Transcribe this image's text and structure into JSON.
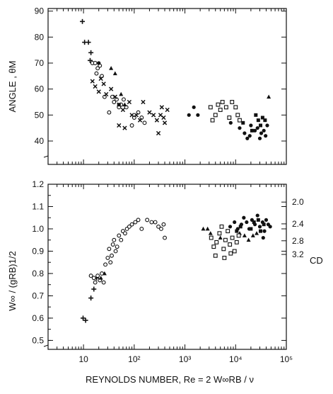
{
  "chart_data": [
    {
      "type": "scatter",
      "panel": "top",
      "title": "",
      "xlabel": "",
      "ylabel": "ANGLE ,  θM",
      "x_scale": "log",
      "xlim": [
        2,
        100000
      ],
      "ylim": [
        31,
        91
      ],
      "y_ticks": [
        40,
        50,
        60,
        70,
        80,
        90
      ],
      "y_tick_labels": [
        "40",
        "50",
        "60",
        "70",
        "80",
        "90"
      ],
      "grid": false,
      "series": [
        {
          "marker": "plus",
          "points": [
            [
              9.5,
              86
            ],
            [
              10.5,
              78
            ],
            [
              12.5,
              78
            ],
            [
              14,
              74
            ],
            [
              13.5,
              71
            ]
          ]
        },
        {
          "marker": "open-circle",
          "points": [
            [
              15,
              70
            ],
            [
              17,
              70
            ],
            [
              19,
              68
            ],
            [
              21,
              69
            ],
            [
              18,
              66
            ],
            [
              23,
              65
            ],
            [
              26,
              57
            ],
            [
              32,
              51
            ],
            [
              37,
              57
            ],
            [
              40,
              55
            ],
            [
              45,
              56
            ],
            [
              50,
              53
            ],
            [
              55,
              54
            ],
            [
              62,
              56
            ],
            [
              70,
              53
            ],
            [
              90,
              46
            ],
            [
              100,
              49
            ],
            [
              120,
              51
            ],
            [
              140,
              49
            ],
            [
              160,
              47
            ]
          ]
        },
        {
          "marker": "cross",
          "points": [
            [
              15,
              63
            ],
            [
              17,
              61
            ],
            [
              20,
              59
            ],
            [
              22,
              64
            ],
            [
              25,
              62
            ],
            [
              28,
              58
            ],
            [
              35,
              60
            ],
            [
              42,
              57
            ],
            [
              50,
              54
            ],
            [
              60,
              52
            ],
            [
              50,
              46
            ],
            [
              65,
              45
            ],
            [
              80,
              55
            ],
            [
              90,
              50
            ],
            [
              110,
              50
            ],
            [
              130,
              48
            ],
            [
              150,
              55
            ],
            [
              200,
              51
            ],
            [
              240,
              50
            ],
            [
              280,
              48
            ],
            [
              300,
              43
            ],
            [
              330,
              50
            ],
            [
              350,
              53
            ],
            [
              380,
              49
            ],
            [
              400,
              47
            ],
            [
              450,
              52
            ]
          ]
        },
        {
          "marker": "filled-triangle",
          "points": [
            [
              35,
              68
            ],
            [
              42,
              66
            ],
            [
              55,
              58
            ],
            [
              65,
              54
            ],
            [
              45000,
              57
            ]
          ]
        },
        {
          "marker": "filled-circle",
          "points": [
            [
              20,
              70
            ],
            [
              50,
              54
            ],
            [
              1200,
              50
            ],
            [
              1500,
              53
            ],
            [
              1800,
              50
            ],
            [
              8000,
              47
            ],
            [
              12000,
              45
            ],
            [
              15000,
              43
            ],
            [
              17000,
              41
            ],
            [
              19000,
              42
            ],
            [
              20000,
              46
            ],
            [
              24000,
              44
            ],
            [
              27000,
              45
            ],
            [
              30000,
              41
            ],
            [
              32000,
              43
            ],
            [
              36000,
              44
            ],
            [
              39000,
              42
            ],
            [
              42000,
              46
            ]
          ]
        },
        {
          "marker": "filled-square",
          "points": [
            [
              14000,
              47
            ],
            [
              21000,
              44
            ],
            [
              25000,
              50
            ],
            [
              28000,
              48
            ],
            [
              31000,
              46
            ],
            [
              34000,
              49
            ],
            [
              38000,
              48
            ]
          ]
        },
        {
          "marker": "open-square",
          "points": [
            [
              3200,
              53
            ],
            [
              3500,
              48
            ],
            [
              4000,
              50
            ],
            [
              4500,
              54
            ],
            [
              5000,
              52
            ],
            [
              5500,
              55
            ],
            [
              6500,
              53
            ],
            [
              7500,
              49
            ],
            [
              8500,
              55
            ],
            [
              10000,
              53
            ],
            [
              11000,
              50
            ],
            [
              12000,
              48
            ]
          ]
        }
      ]
    },
    {
      "type": "scatter",
      "panel": "bottom",
      "title": "",
      "xlabel": "REYNOLDS  NUMBER,   Re = 2 W∞RB / ν",
      "ylabel": "W∞ / (gRB)1/2",
      "y2label": "CD",
      "x_scale": "log",
      "xlim": [
        2,
        100000
      ],
      "x_ticks": [
        10,
        100,
        1000,
        10000,
        100000
      ],
      "x_tick_labels": [
        "10",
        "10²",
        "10³",
        "10⁴",
        "10⁵"
      ],
      "ylim": [
        0.46,
        1.2
      ],
      "y_ticks": [
        0.5,
        0.6,
        0.7,
        0.8,
        0.9,
        1.0,
        1.1,
        1.2
      ],
      "y_tick_labels": [
        "0.5",
        "0.6",
        "0.7",
        "0.8",
        "0.9",
        "1.0",
        "1.1",
        "1.2"
      ],
      "y2_ticks": [
        2.0,
        2.4,
        2.8,
        3.2
      ],
      "y2_tick_labels": [
        "2.0",
        "2.4",
        "2.8",
        "3.2"
      ],
      "grid": false,
      "series": [
        {
          "marker": "plus",
          "points": [
            [
              9.8,
              0.6
            ],
            [
              11,
              0.59
            ],
            [
              14,
              0.69
            ],
            [
              16,
              0.73
            ],
            [
              18,
              0.78
            ]
          ]
        },
        {
          "marker": "open-circle",
          "points": [
            [
              14,
              0.79
            ],
            [
              16,
              0.78
            ],
            [
              17,
              0.76
            ],
            [
              19,
              0.79
            ],
            [
              21,
              0.77
            ],
            [
              23,
              0.8
            ],
            [
              25,
              0.76
            ],
            [
              27,
              0.84
            ],
            [
              30,
              0.87
            ],
            [
              32,
              0.91
            ],
            [
              34,
              0.85
            ],
            [
              36,
              0.88
            ],
            [
              38,
              0.93
            ],
            [
              40,
              0.95
            ],
            [
              43,
              0.9
            ],
            [
              46,
              0.92
            ],
            [
              50,
              0.97
            ],
            [
              55,
              0.95
            ],
            [
              60,
              0.99
            ],
            [
              66,
              0.98
            ],
            [
              72,
              1.0
            ],
            [
              80,
              1.01
            ],
            [
              90,
              1.02
            ],
            [
              105,
              1.03
            ],
            [
              120,
              1.04
            ],
            [
              140,
              1.0
            ],
            [
              180,
              1.04
            ],
            [
              220,
              1.03
            ],
            [
              260,
              1.03
            ],
            [
              300,
              1.01
            ],
            [
              340,
              1.0
            ],
            [
              380,
              1.02
            ],
            [
              400,
              0.96
            ]
          ]
        },
        {
          "marker": "filled-triangle",
          "points": [
            [
              22,
              0.78
            ],
            [
              26,
              0.8
            ],
            [
              2300,
              1.0
            ],
            [
              2800,
              1.0
            ],
            [
              3200,
              0.98
            ],
            [
              5000,
              0.96
            ],
            [
              12000,
              0.98
            ],
            [
              15000,
              0.97
            ],
            [
              18000,
              0.95
            ],
            [
              22000,
              0.97
            ],
            [
              26000,
              0.98
            ]
          ]
        },
        {
          "marker": "filled-circle",
          "points": [
            [
              7800,
              1.01
            ],
            [
              9500,
              1.03
            ],
            [
              11000,
              1.0
            ],
            [
              13000,
              1.02
            ],
            [
              14500,
              1.05
            ],
            [
              16500,
              1.03
            ],
            [
              18500,
              1.0
            ],
            [
              21000,
              1.04
            ],
            [
              24000,
              1.02
            ],
            [
              27000,
              1.06
            ],
            [
              30000,
              1.01
            ],
            [
              34000,
              1.03
            ],
            [
              37000,
              0.99
            ],
            [
              40000,
              1.04
            ],
            [
              44000,
              1.02
            ],
            [
              48000,
              1.01
            ],
            [
              35000,
              0.96
            ]
          ]
        },
        {
          "marker": "filled-square",
          "points": [
            [
              10500,
              0.99
            ],
            [
              12500,
              1.01
            ],
            [
              20000,
              1.0
            ],
            [
              23000,
              1.03
            ],
            [
              28000,
              1.04
            ],
            [
              31000,
              0.99
            ],
            [
              36000,
              1.02
            ]
          ]
        },
        {
          "marker": "open-square",
          "points": [
            [
              3300,
              0.96
            ],
            [
              3700,
              0.92
            ],
            [
              4200,
              0.94
            ],
            [
              4800,
              0.98
            ],
            [
              5300,
              1.01
            ],
            [
              5800,
              0.91
            ],
            [
              6300,
              0.95
            ],
            [
              7000,
              0.99
            ],
            [
              7700,
              0.93
            ],
            [
              8600,
              0.96
            ],
            [
              9500,
              0.9
            ],
            [
              10500,
              0.94
            ],
            [
              11500,
              0.97
            ],
            [
              4000,
              0.88
            ],
            [
              6000,
              0.87
            ],
            [
              8000,
              0.89
            ]
          ]
        }
      ]
    }
  ]
}
